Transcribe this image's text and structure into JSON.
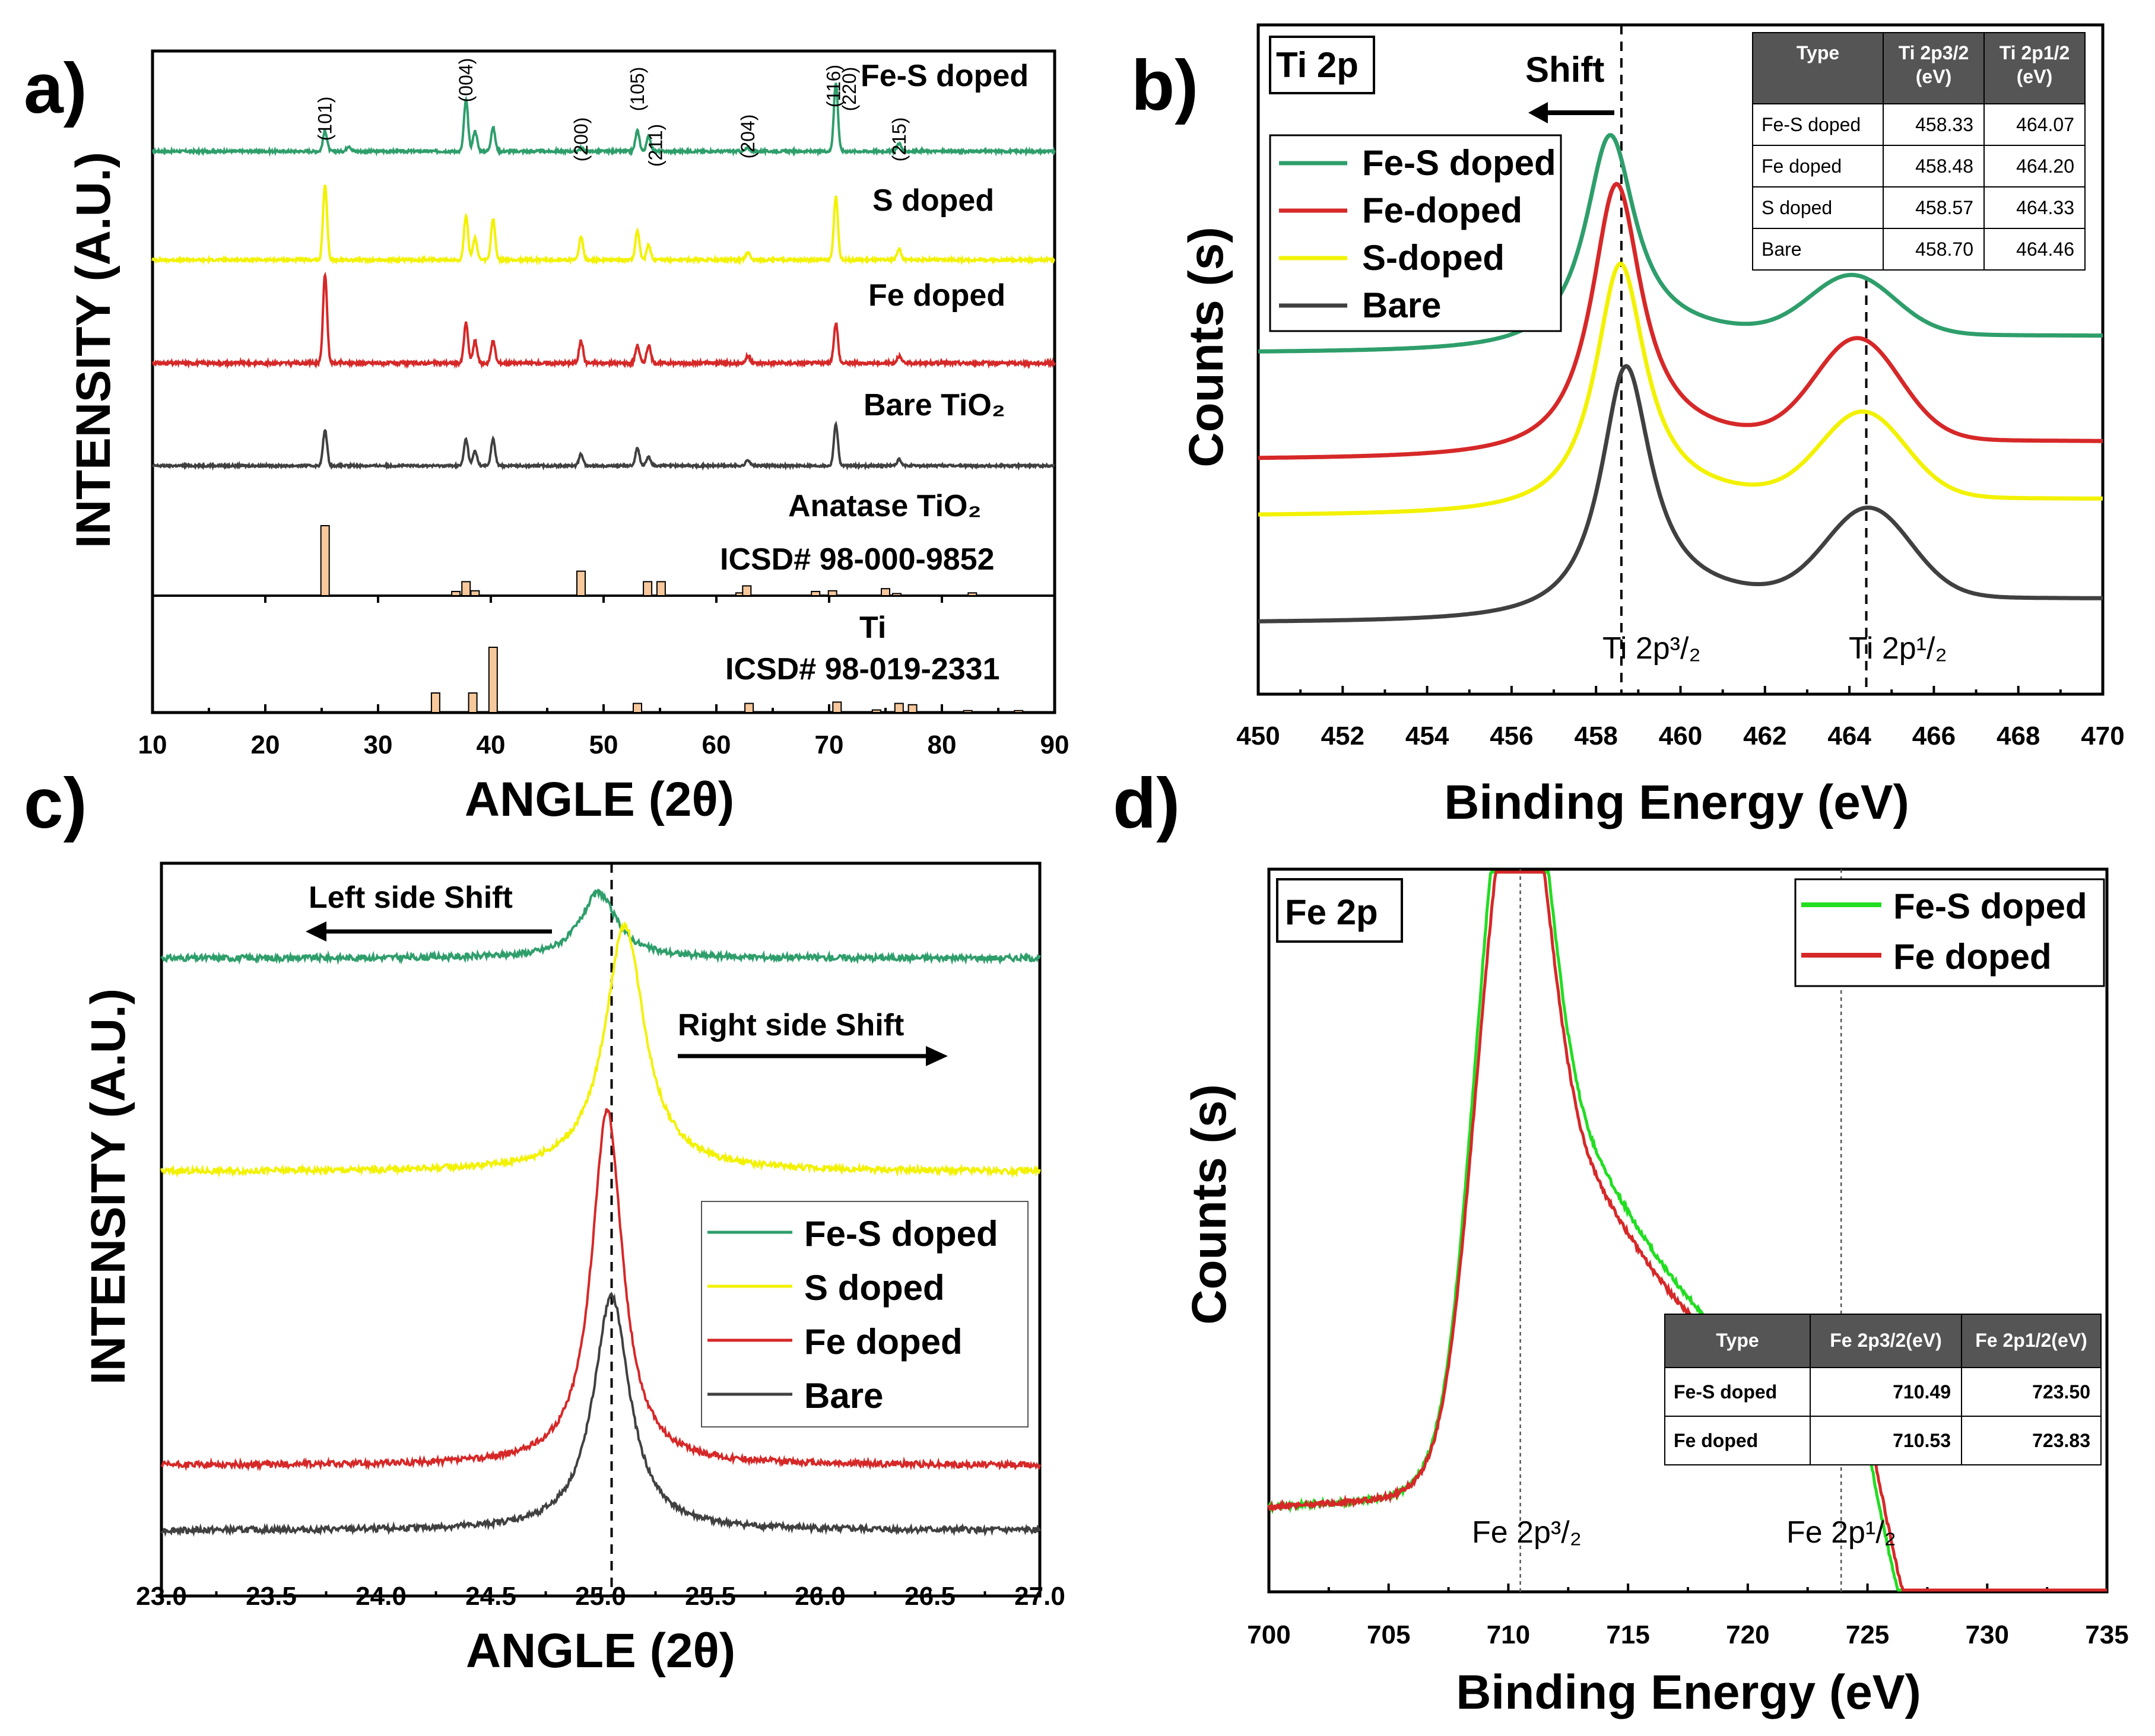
{
  "colors": {
    "fes": "#2e9e6b",
    "s": "#f2f200",
    "fe": "#d62828",
    "bare": "#404040",
    "fes_bright": "#22dd22",
    "ref_bar": "#f7c89b",
    "table_header": "#555555"
  },
  "panels": {
    "a": {
      "label": "a)",
      "ylabel": "INTENSITY (A.U.)",
      "xlabel": "ANGLE (2θ)",
      "series_labels": [
        "Fe-S doped",
        "S doped",
        "Fe doped",
        "Bare TiO₂"
      ],
      "anatase": {
        "name": "Anatase TiO₂",
        "icsd": "ICSD# 98-000-9852"
      },
      "ti": {
        "name": "Ti",
        "icsd": "ICSD# 98-019-2331"
      }
    },
    "b": {
      "label": "b)",
      "title": "Ti 2p",
      "ylabel": "Counts (s)",
      "xlabel": "Binding Energy (eV)",
      "shift_label": "Shift",
      "peak1": "Ti 2p³/₂",
      "peak2": "Ti 2p¹/₂",
      "legend": [
        "Fe-S doped",
        "Fe-doped",
        "S-doped",
        "Bare"
      ]
    },
    "c": {
      "label": "c)",
      "ylabel": "INTENSITY (A.U.)",
      "xlabel": "ANGLE (2θ)",
      "left_shift": "Left side Shift",
      "right_shift": "Right side Shift",
      "legend": [
        "Fe-S doped",
        "S doped",
        "Fe doped",
        "Bare"
      ]
    },
    "d": {
      "label": "d)",
      "title": "Fe 2p",
      "ylabel": "Counts (s)",
      "xlabel": "Binding Energy (eV)",
      "peak1": "Fe 2p³/₂",
      "peak2": "Fe 2p¹/₂",
      "legend": [
        "Fe-S doped",
        "Fe doped"
      ]
    }
  },
  "chart_data": [
    {
      "id": "a",
      "type": "line",
      "title": "",
      "xlabel": "ANGLE (2θ)",
      "ylabel": "INTENSITY (A.U.)",
      "xlim": [
        10,
        90
      ],
      "xticks": [
        10,
        20,
        30,
        40,
        50,
        60,
        70,
        80,
        90
      ],
      "series": [
        {
          "name": "Fe-S doped",
          "peaks": [
            [
              25.3,
              0.3
            ],
            [
              27.4,
              0.08
            ],
            [
              37.8,
              0.75
            ],
            [
              38.6,
              0.3
            ],
            [
              40.2,
              0.35
            ],
            [
              48.0,
              0.05
            ],
            [
              53.0,
              0.3
            ],
            [
              54.0,
              0.22
            ],
            [
              62.8,
              0.05
            ],
            [
              70.6,
              1.0
            ],
            [
              76.2,
              0.12
            ]
          ]
        },
        {
          "name": "S doped",
          "peaks": [
            [
              25.3,
              1.0
            ],
            [
              37.8,
              0.6
            ],
            [
              38.6,
              0.3
            ],
            [
              40.2,
              0.55
            ],
            [
              48.0,
              0.3
            ],
            [
              53.0,
              0.4
            ],
            [
              54.0,
              0.2
            ],
            [
              62.8,
              0.1
            ],
            [
              70.6,
              0.85
            ],
            [
              76.2,
              0.15
            ]
          ]
        },
        {
          "name": "Fe doped",
          "peaks": [
            [
              25.3,
              1.0
            ],
            [
              37.8,
              0.45
            ],
            [
              38.6,
              0.25
            ],
            [
              40.2,
              0.25
            ],
            [
              48.0,
              0.25
            ],
            [
              53.0,
              0.2
            ],
            [
              54.0,
              0.2
            ],
            [
              62.8,
              0.08
            ],
            [
              70.6,
              0.45
            ],
            [
              76.2,
              0.08
            ]
          ]
        },
        {
          "name": "Bare TiO₂",
          "peaks": [
            [
              25.3,
              0.6
            ],
            [
              37.8,
              0.45
            ],
            [
              38.6,
              0.25
            ],
            [
              40.2,
              0.45
            ],
            [
              48.0,
              0.2
            ],
            [
              53.0,
              0.3
            ],
            [
              54.0,
              0.15
            ],
            [
              62.8,
              0.1
            ],
            [
              70.6,
              0.7
            ],
            [
              76.2,
              0.1
            ]
          ]
        }
      ],
      "peak_annotations": [
        {
          "label": "(101)",
          "x": 25.3
        },
        {
          "label": "(004)",
          "x": 37.8
        },
        {
          "label": "(200)",
          "x": 48.0
        },
        {
          "label": "(105)",
          "x": 53.0
        },
        {
          "label": "(211)",
          "x": 54.6
        },
        {
          "label": "(204)",
          "x": 62.8
        },
        {
          "label": "(116)",
          "x": 70.4
        },
        {
          "label": "(220)",
          "x": 71.8
        },
        {
          "label": "(215)",
          "x": 76.2
        }
      ],
      "reference_anatase": [
        [
          25.3,
          1.0
        ],
        [
          36.9,
          0.06
        ],
        [
          37.8,
          0.2
        ],
        [
          38.6,
          0.07
        ],
        [
          48.0,
          0.35
        ],
        [
          53.9,
          0.2
        ],
        [
          55.1,
          0.2
        ],
        [
          62.1,
          0.04
        ],
        [
          62.7,
          0.14
        ],
        [
          68.8,
          0.06
        ],
        [
          70.3,
          0.07
        ],
        [
          75.0,
          0.1
        ],
        [
          76.0,
          0.03
        ],
        [
          82.7,
          0.04
        ]
      ],
      "reference_ti": [
        [
          35.1,
          0.3
        ],
        [
          38.4,
          0.3
        ],
        [
          40.2,
          1.0
        ],
        [
          53.0,
          0.14
        ],
        [
          62.9,
          0.14
        ],
        [
          70.7,
          0.16
        ],
        [
          74.2,
          0.04
        ],
        [
          76.2,
          0.14
        ],
        [
          77.4,
          0.12
        ],
        [
          82.3,
          0.03
        ],
        [
          86.8,
          0.03
        ]
      ]
    },
    {
      "id": "b",
      "type": "line",
      "title": "Ti 2p",
      "xlabel": "Binding Energy (eV)",
      "ylabel": "Counts (s)",
      "xlim": [
        450,
        470
      ],
      "xticks": [
        450,
        452,
        454,
        456,
        458,
        460,
        462,
        464,
        466,
        468,
        470
      ],
      "series": [
        {
          "name": "Fe-S doped",
          "ti_2p3_2": 458.33,
          "ti_2p1_2": 464.07
        },
        {
          "name": "Fe-doped",
          "ti_2p3_2": 458.48,
          "ti_2p1_2": 464.2
        },
        {
          "name": "S-doped",
          "ti_2p3_2": 458.57,
          "ti_2p1_2": 464.33
        },
        {
          "name": "Bare",
          "ti_2p3_2": 458.7,
          "ti_2p1_2": 464.46
        }
      ],
      "reference_lines": [
        458.6,
        464.4
      ],
      "table": {
        "headers": [
          "Type",
          "Ti 2p3/2 (eV)",
          "Ti 2p1/2 (eV)"
        ],
        "rows": [
          [
            "Fe-S doped",
            "458.33",
            "464.07"
          ],
          [
            "Fe doped",
            "458.48",
            "464.20"
          ],
          [
            "S doped",
            "458.57",
            "464.33"
          ],
          [
            "Bare",
            "458.70",
            "464.46"
          ]
        ]
      }
    },
    {
      "id": "c",
      "type": "line",
      "title": "",
      "xlabel": "ANGLE (2θ)",
      "ylabel": "INTENSITY (A.U.)",
      "xlim": [
        23.0,
        27.0
      ],
      "xticks": [
        "23.0",
        "23.5",
        "24.0",
        "24.5",
        "25.0",
        "25.5",
        "26.0",
        "26.5",
        "27.0"
      ],
      "reference_line": 25.05,
      "series": [
        {
          "name": "Fe-S doped",
          "peak_center": 24.99
        },
        {
          "name": "S doped",
          "peak_center": 25.11
        },
        {
          "name": "Fe doped",
          "peak_center": 25.03
        },
        {
          "name": "Bare",
          "peak_center": 25.05
        }
      ]
    },
    {
      "id": "d",
      "type": "line",
      "title": "Fe 2p",
      "xlabel": "Binding Energy (eV)",
      "ylabel": "Counts (s)",
      "xlim": [
        700,
        735
      ],
      "xticks": [
        700,
        705,
        710,
        715,
        720,
        725,
        730,
        735
      ],
      "series": [
        {
          "name": "Fe-S doped",
          "fe_2p3_2": 710.49,
          "fe_2p1_2": 723.5
        },
        {
          "name": "Fe doped",
          "fe_2p3_2": 710.53,
          "fe_2p1_2": 723.83
        }
      ],
      "reference_lines": [
        710.5,
        723.9
      ],
      "table": {
        "headers": [
          "Type",
          "Fe 2p3/2(eV)",
          "Fe 2p1/2(eV)"
        ],
        "rows": [
          [
            "Fe-S doped",
            "710.49",
            "723.50"
          ],
          [
            "Fe doped",
            "710.53",
            "723.83"
          ]
        ]
      }
    }
  ]
}
